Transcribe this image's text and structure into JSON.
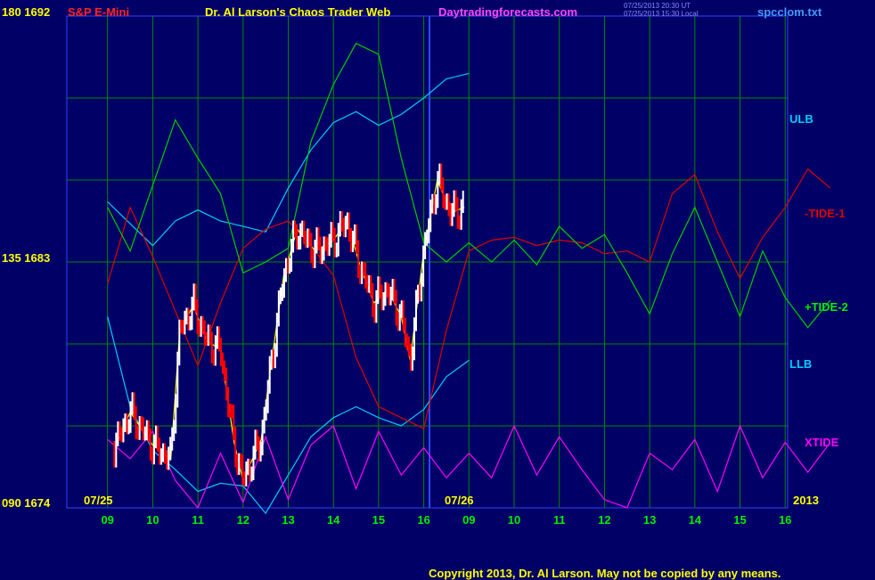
{
  "header": {
    "symbol": "S&P E-Mini",
    "title": "Dr. Al Larson's Chaos Trader Web",
    "site": "Daytradingforecasts.com",
    "stamp_ut": "07/25/2013 20:30 UT",
    "stamp_local": "07/25/2013 15:30 Local",
    "file": "spcclom.txt"
  },
  "left_axis": {
    "top": "180 1692",
    "mid": "135 1683",
    "bottom": "090 1674"
  },
  "right_labels": {
    "ulb": "ULB",
    "tide1": "-TIDE-1",
    "tide2": "+TIDE-2",
    "llb": "LLB",
    "xtide": "XTIDE",
    "year": "2013"
  },
  "date_labels": {
    "d1": "07/25",
    "d2": "07/26"
  },
  "copyright": "Copyright 2013, Dr. Al Larson. May not be copied by any means.",
  "colors": {
    "background": "#000066",
    "grid": "#008800",
    "divider": "#3344ff",
    "ulb_llb": "#00ccff",
    "tide1": "#dd0000",
    "tide2": "#00cc00",
    "xtide": "#ff00ff",
    "price_up": "#ffffff",
    "price_down": "#ff0000",
    "ma": "#ffff00"
  },
  "chart_data": {
    "type": "line",
    "xlabel": "",
    "ylabel": "",
    "x_ticks": [
      "09",
      "10",
      "11",
      "12",
      "13",
      "14",
      "15",
      "16",
      "09",
      "10",
      "11",
      "12",
      "13",
      "14",
      "15",
      "16"
    ],
    "ylim": [
      1674,
      1692
    ],
    "y_ticks": [
      1674,
      1683,
      1692
    ],
    "grid": true,
    "series": [
      {
        "name": "ULB",
        "x": [
          0,
          0.5,
          1,
          1.5,
          2,
          2.5,
          3,
          3.5,
          4,
          4.5,
          5,
          5.5,
          6,
          6.5,
          7,
          7.5,
          8
        ],
        "y": [
          1685.2,
          1684.4,
          1683.6,
          1684.5,
          1684.9,
          1684.5,
          1684.3,
          1684.1,
          1685.7,
          1687.1,
          1688.1,
          1688.5,
          1688.0,
          1688.4,
          1689.0,
          1689.7,
          1689.9
        ]
      },
      {
        "name": "LLB",
        "x": [
          0,
          0.5,
          1,
          1.5,
          2,
          2.5,
          3,
          3.5,
          4,
          4.5,
          5,
          5.5,
          6,
          6.5,
          7,
          7.5,
          8
        ],
        "y": [
          1681.0,
          1677.7,
          1676.1,
          1675.4,
          1674.6,
          1674.9,
          1674.8,
          1673.8,
          1675.2,
          1676.6,
          1677.3,
          1677.7,
          1677.3,
          1677.0,
          1677.6,
          1678.8,
          1679.4
        ]
      },
      {
        "name": "-TIDE-1",
        "x": [
          0,
          0.5,
          1,
          1.5,
          2,
          2.5,
          3,
          3.5,
          4,
          4.5,
          5,
          5.5,
          6,
          6.5,
          7,
          7.5,
          8,
          8.5,
          9,
          9.5,
          10,
          10.5,
          11,
          11.5,
          12,
          12.5,
          13,
          13.5,
          14,
          14.5,
          15,
          15.5,
          16
        ],
        "y": [
          1682.2,
          1685.0,
          1683.2,
          1681.2,
          1679.2,
          1681.5,
          1683.5,
          1684.2,
          1684.5,
          1683.6,
          1682.5,
          1679.5,
          1677.7,
          1677.3,
          1676.9,
          1680.5,
          1683.4,
          1683.8,
          1683.9,
          1683.6,
          1683.8,
          1683.7,
          1683.3,
          1683.4,
          1683.0,
          1685.5,
          1686.2,
          1684.1,
          1682.4,
          1683.9,
          1685.0,
          1686.4,
          1685.7
        ]
      },
      {
        "name": "+TIDE-2",
        "x": [
          0,
          0.5,
          1,
          1.5,
          2,
          2.5,
          3,
          3.5,
          4,
          4.5,
          5,
          5.5,
          6,
          6.5,
          7,
          7.5,
          8,
          8.5,
          9,
          9.5,
          10,
          10.5,
          11,
          11.5,
          12,
          12.5,
          13,
          13.5,
          14,
          14.5,
          15,
          15.5,
          16
        ],
        "y": [
          1685.0,
          1683.4,
          1685.8,
          1688.2,
          1686.8,
          1685.5,
          1682.6,
          1683.0,
          1683.5,
          1687.4,
          1689.5,
          1691.0,
          1690.6,
          1686.8,
          1683.7,
          1683.0,
          1683.7,
          1683.0,
          1683.8,
          1682.9,
          1684.3,
          1683.5,
          1684.0,
          1682.6,
          1681.1,
          1683.3,
          1685.0,
          1683.0,
          1681.0,
          1683.4,
          1681.7,
          1680.6,
          1681.6
        ]
      },
      {
        "name": "XTIDE",
        "x": [
          0,
          0.5,
          1,
          1.5,
          2,
          2.5,
          3,
          3.5,
          4,
          4.5,
          5,
          5.5,
          6,
          6.5,
          7,
          7.5,
          8,
          8.5,
          9,
          9.5,
          10,
          10.5,
          11,
          11.5,
          12,
          12.5,
          13,
          13.5,
          14,
          14.5,
          15,
          15.5,
          16
        ],
        "y": [
          1676.5,
          1675.8,
          1676.8,
          1675.0,
          1674.0,
          1676.0,
          1674.2,
          1676.6,
          1674.3,
          1676.3,
          1677.0,
          1674.7,
          1676.8,
          1675.2,
          1676.2,
          1675.1,
          1676.0,
          1675.1,
          1677.0,
          1675.2,
          1676.6,
          1675.4,
          1674.3,
          1674.0,
          1676.0,
          1675.4,
          1676.5,
          1674.6,
          1677.0,
          1675.1,
          1676.4,
          1675.3,
          1676.4
        ]
      },
      {
        "name": "Price",
        "x": [
          0.15,
          0.5,
          1,
          1.4,
          1.6,
          1.9,
          2.2,
          2.5,
          2.8,
          3,
          3.4,
          3.6,
          3.9,
          4.2,
          4.6,
          5,
          5.3,
          5.6,
          5.9,
          6.2,
          6.5,
          6.7,
          7,
          7.3,
          7.6,
          7.9
        ],
        "y": [
          1676.2,
          1677.5,
          1676.3,
          1675.8,
          1680.5,
          1681.4,
          1680.1,
          1679.8,
          1676.4,
          1675.0,
          1676.5,
          1679.0,
          1682.5,
          1684.2,
          1683.4,
          1683.8,
          1684.5,
          1682.8,
          1681.5,
          1682.0,
          1681.0,
          1679.4,
          1683.4,
          1686.0,
          1684.8,
          1685.0
        ]
      }
    ]
  }
}
